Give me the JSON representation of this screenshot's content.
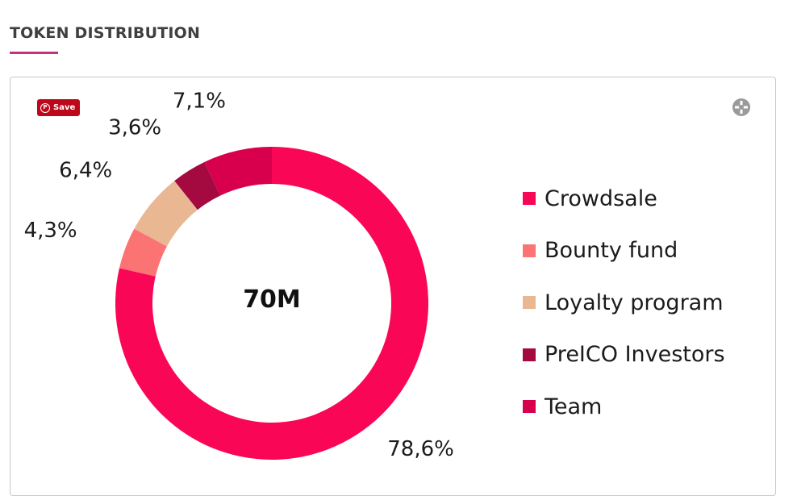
{
  "header": {
    "title": "TOKEN DISTRIBUTION",
    "accent_color": "#c5327f"
  },
  "toolbar": {
    "save_label": "Save",
    "save_icon": "pinterest-icon",
    "expand_icon": "expand-crosshair-icon"
  },
  "chart_data": {
    "type": "pie",
    "variant": "donut",
    "center_label": "70M",
    "categories": [
      "Crowdsale",
      "Bounty fund",
      "Loyalty program",
      "PreICO Investors",
      "Team"
    ],
    "values": [
      78.6,
      4.3,
      6.4,
      3.6,
      7.1
    ],
    "value_labels": [
      "78,6%",
      "4,3%",
      "6,4%",
      "3,6%",
      "7,1%"
    ],
    "colors": [
      "#fa0656",
      "#fb7373",
      "#e9b893",
      "#a40a40",
      "#d8004c"
    ],
    "legend_position": "right",
    "start": "top, counter-clockwise"
  }
}
